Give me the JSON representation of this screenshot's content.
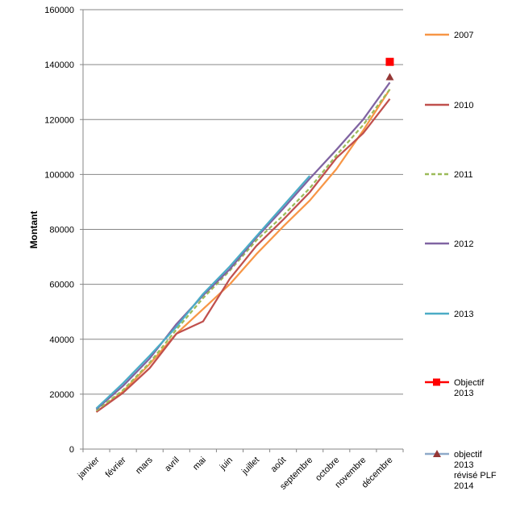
{
  "chart_data": {
    "type": "line",
    "title": "",
    "xlabel": "",
    "ylabel": "Montant",
    "ylim": [
      0,
      160000
    ],
    "yticks": [
      "0",
      "20000",
      "40000",
      "60000",
      "80000",
      "100000",
      "120000",
      "140000",
      "160000"
    ],
    "categories": [
      "janvier",
      "février",
      "mars",
      "avril",
      "mai",
      "juin",
      "juillet",
      "août",
      "septembre",
      "octobre",
      "novembre",
      "décembre"
    ],
    "grid": "horizontal",
    "legend_position": "right",
    "series": [
      {
        "name": "2007",
        "color": "#F79646",
        "dash": "solid",
        "values": [
          13500,
          21000,
          31000,
          42000,
          51000,
          60000,
          71000,
          81000,
          90500,
          102000,
          116000,
          131000
        ]
      },
      {
        "name": "2010",
        "color": "#C0504D",
        "dash": "solid",
        "values": [
          13500,
          20500,
          29500,
          42000,
          46500,
          62000,
          74000,
          83500,
          93500,
          106000,
          115000,
          127500
        ]
      },
      {
        "name": "2011",
        "color": "#9BBB59",
        "dash": "dashed",
        "values": [
          14000,
          21500,
          31500,
          43500,
          55000,
          65000,
          76000,
          85000,
          95000,
          107000,
          118000,
          131000
        ]
      },
      {
        "name": "2012",
        "color": "#8064A2",
        "dash": "solid",
        "values": [
          14500,
          23000,
          33000,
          45500,
          56000,
          65500,
          77000,
          87500,
          98500,
          109000,
          120000,
          133500
        ]
      },
      {
        "name": "2013",
        "color": "#4BACC6",
        "dash": "solid",
        "values": [
          14800,
          24000,
          34000,
          44500,
          56500,
          66500,
          77500,
          88500,
          99500,
          null,
          null,
          null
        ]
      }
    ],
    "points": [
      {
        "name": "Objectif 2013",
        "color": "#FF0000",
        "marker": "square",
        "category": "décembre",
        "value": 141000
      },
      {
        "name": "objectif 2013 révisé PLF 2014",
        "color": "#953735",
        "line_color": "#8EA9C9",
        "marker": "triangle",
        "category": "décembre",
        "value": 135500
      }
    ],
    "legend": [
      {
        "label": "2007",
        "color": "#F79646",
        "style": "line"
      },
      {
        "label": "2010",
        "color": "#C0504D",
        "style": "line"
      },
      {
        "label": "2011",
        "color": "#9BBB59",
        "style": "dashed"
      },
      {
        "label": "2012",
        "color": "#8064A2",
        "style": "line"
      },
      {
        "label": "2013",
        "color": "#4BACC6",
        "style": "line"
      },
      {
        "label": "Objectif 2013",
        "lines": [
          "Objectif",
          "2013"
        ],
        "color": "#FF0000",
        "style": "square"
      },
      {
        "label": "objectif 2013 révisé PLF 2014",
        "lines": [
          "objectif",
          "2013",
          "révisé PLF",
          "2014"
        ],
        "color": "#953735",
        "line_color": "#8EA9C9",
        "style": "triangle"
      }
    ]
  }
}
